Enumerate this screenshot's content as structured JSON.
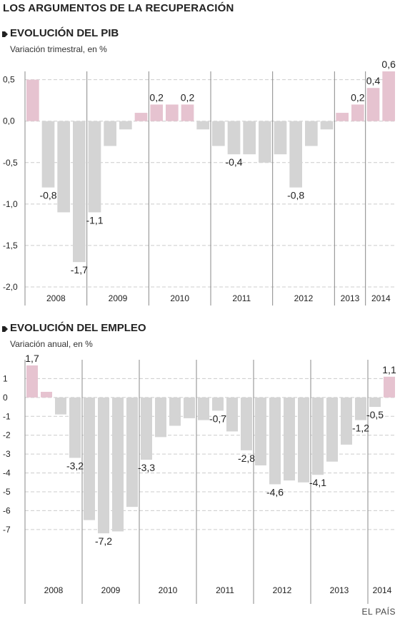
{
  "title": "LOS ARGUMENTOS DE LA RECUPERACIÓN",
  "source": "EL PAÍS",
  "colors": {
    "negative": "#d4d4d4",
    "positive": "#e6c3d0",
    "grid": "#cccccc",
    "axis": "#888888",
    "text": "#222222"
  },
  "chart_data": [
    {
      "type": "bar",
      "title": "EVOLUCIÓN DEL PIB",
      "subtitle": "Variación trimestral, en %",
      "ylim": [
        -2.0,
        0.6
      ],
      "yticks": [
        "0,5",
        "0,0",
        "-0,5",
        "-1,0",
        "-1,5",
        "-2,0"
      ],
      "ytick_values": [
        0.5,
        0.0,
        -0.5,
        -1.0,
        -1.5,
        -2.0
      ],
      "grid": true,
      "years": [
        "2008",
        "2009",
        "2010",
        "2011",
        "2012",
        "2013",
        "2014"
      ],
      "values": [
        0.5,
        -0.8,
        -1.1,
        -1.7,
        -1.1,
        -0.3,
        -0.1,
        0.1,
        0.2,
        0.2,
        0.2,
        -0.1,
        -0.3,
        -0.4,
        -0.4,
        -0.5,
        -0.4,
        -0.8,
        -0.3,
        -0.1,
        0.1,
        0.2,
        0.4,
        0.6
      ],
      "data_labels": {
        "1": "-0,8",
        "3": "-1,7",
        "4": "-1,1",
        "8": "0,2",
        "10": "0,2",
        "13": "-0,4",
        "17": "-0,8",
        "21": "0,2",
        "22": "0,4",
        "23": "0,6"
      }
    },
    {
      "type": "bar",
      "title": "EVOLUCIÓN DEL EMPLEO",
      "subtitle": "Variación anual, en %",
      "ylim": [
        -9.2,
        2.0
      ],
      "yticks": [
        "1",
        "0",
        "-1",
        "-2",
        "-3",
        "-4",
        "-5",
        "-6",
        "-7"
      ],
      "ytick_values": [
        1,
        0,
        -1,
        -2,
        -3,
        -4,
        -5,
        -6,
        -7
      ],
      "grid": true,
      "years": [
        "2008",
        "2009",
        "2010",
        "2011",
        "2012",
        "2013",
        "2014"
      ],
      "values": [
        1.7,
        0.3,
        -0.9,
        -3.2,
        -6.5,
        -7.2,
        -7.1,
        -5.8,
        -3.3,
        -2.1,
        -1.5,
        -1.1,
        -1.2,
        -0.7,
        -1.8,
        -2.8,
        -3.6,
        -4.6,
        -4.4,
        -4.5,
        -4.1,
        -3.4,
        -2.5,
        -1.2,
        -0.5,
        1.1
      ],
      "data_labels": {
        "0": "1,7",
        "3": "-3,2",
        "5": "-7,2",
        "8": "-3,3",
        "13": "-0,7",
        "15": "-2,8",
        "17": "-4,6",
        "20": "-4,1",
        "23": "-1,2",
        "24": "-0,5",
        "25": "1,1"
      }
    }
  ]
}
